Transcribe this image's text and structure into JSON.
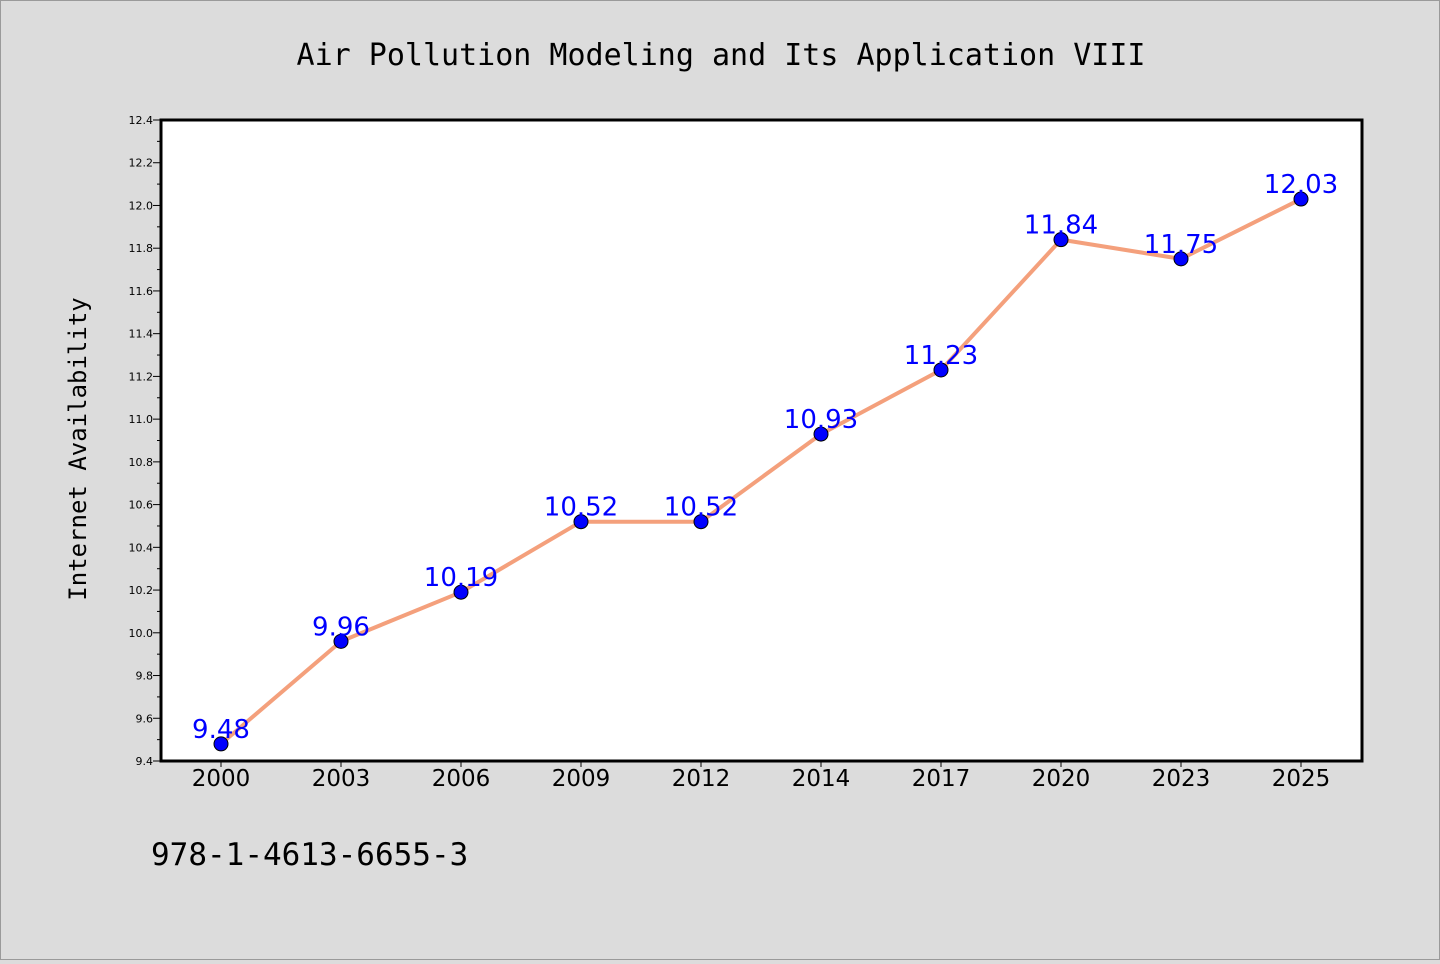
{
  "title": "Air Pollution Modeling and Its Application VIII",
  "footer_text": "978-1-4613-6655-3",
  "colors": {
    "background": "#dcdcdc",
    "plot_background": "#ffffff",
    "line": "#f4a07c",
    "marker": "#0000ff",
    "data_label": "#0000ff"
  },
  "chart_data": {
    "type": "line",
    "title": "Air Pollution Modeling and Its Application VIII",
    "xlabel": "",
    "ylabel": "Internet Availability",
    "categories": [
      "2000",
      "2003",
      "2006",
      "2009",
      "2012",
      "2014",
      "2017",
      "2020",
      "2023",
      "2025"
    ],
    "values": [
      9.48,
      9.96,
      10.19,
      10.52,
      10.52,
      10.93,
      11.23,
      11.84,
      11.75,
      12.03
    ],
    "data_labels": [
      "9.48",
      "9.96",
      "10.19",
      "10.52",
      "10.52",
      "10.93",
      "11.23",
      "11.84",
      "11.75",
      "12.03"
    ],
    "ylim": [
      9.4,
      12.4
    ],
    "yticks": [
      "9.4",
      "9.6",
      "9.8",
      "10.0",
      "10.2",
      "10.4",
      "10.6",
      "10.8",
      "11.0",
      "11.2",
      "11.4",
      "11.6",
      "11.8",
      "12.0",
      "12.2",
      "12.4"
    ],
    "grid": false,
    "legend": "none",
    "marker": "circle"
  }
}
